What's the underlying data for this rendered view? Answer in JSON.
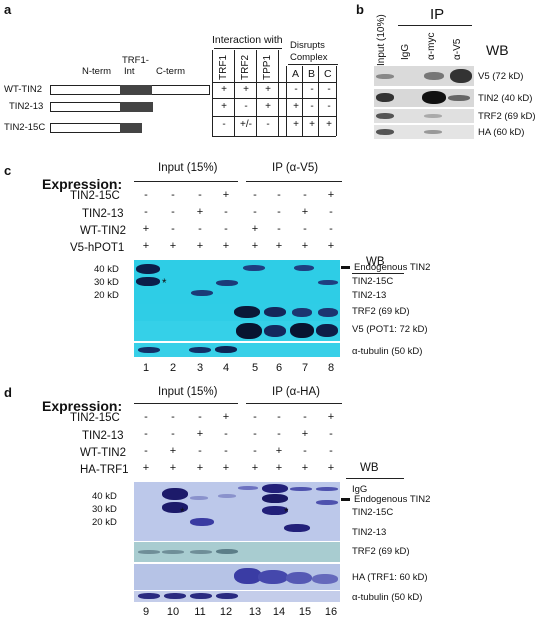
{
  "panel_a": {
    "label": "a",
    "domain_labels": {
      "nterm": "N-term",
      "trf1_int_line1": "TRF1-",
      "trf1_int_line2": "Int",
      "cterm": "C-term"
    },
    "constructs": [
      "WT-TIN2",
      "TIN2-13",
      "TIN2-15C"
    ],
    "interaction_header": "Interaction with",
    "interaction_cols": [
      "TRF1",
      "TRF2",
      "TPP1"
    ],
    "disrupts_header_line1": "Disrupts",
    "disrupts_header_line2": "Complex",
    "disrupts_cols": [
      "A",
      "B",
      "C"
    ],
    "rows": [
      [
        "+",
        "+",
        "+",
        "-",
        "-",
        "-"
      ],
      [
        "+",
        "-",
        "+",
        "+",
        "-",
        "-"
      ],
      [
        "-",
        "+/-",
        "-",
        "+",
        "+",
        "+"
      ]
    ]
  },
  "panel_b": {
    "label": "b",
    "input_label": "Input (10%)",
    "ip_label": "IP",
    "lanes": [
      "IgG",
      "α-myc",
      "α-V5"
    ],
    "wb_label": "WB",
    "blots": [
      "V5 (72 kD)",
      "TIN2 (40 kD)",
      "TRF2 (69 kD)",
      "HA (60 kD)"
    ]
  },
  "panel_c": {
    "label": "c",
    "expression_label": "Expression:",
    "input_label": "Input (15%)",
    "ip_label": "IP (α-V5)",
    "row_labels": [
      "TIN2-15C",
      "TIN2-13",
      "WT-TIN2",
      "V5-hPOT1"
    ],
    "rows": [
      [
        "-",
        "-",
        "-",
        "+",
        "-",
        "-",
        "-",
        "+"
      ],
      [
        "-",
        "-",
        "+",
        "-",
        "-",
        "-",
        "+",
        "-"
      ],
      [
        "+",
        "-",
        "-",
        "-",
        "+",
        "-",
        "-",
        "-"
      ],
      [
        "+",
        "+",
        "+",
        "+",
        "+",
        "+",
        "+",
        "+"
      ]
    ],
    "wb_label": "WB",
    "mw_markers": [
      "40 kD",
      "30 kD",
      "20 kD"
    ],
    "right_labels": [
      "Endogenous TIN2",
      "TIN2-15C",
      "TIN2-13",
      "TRF2 (69 kD)",
      "V5 (POT1: 72 kD)",
      "α-tubulin (50 kD)"
    ],
    "asterisk": "*",
    "lane_numbers": [
      "1",
      "2",
      "3",
      "4",
      "5",
      "6",
      "7",
      "8"
    ]
  },
  "panel_d": {
    "label": "d",
    "expression_label": "Expression:",
    "input_label": "Input (15%)",
    "ip_label": "IP (α-HA)",
    "row_labels": [
      "TIN2-15C",
      "TIN2-13",
      "WT-TIN2",
      "HA-TRF1"
    ],
    "rows": [
      [
        "-",
        "-",
        "-",
        "+",
        "-",
        "-",
        "-",
        "+"
      ],
      [
        "-",
        "-",
        "+",
        "-",
        "-",
        "-",
        "+",
        "-"
      ],
      [
        "-",
        "+",
        "-",
        "-",
        "-",
        "+",
        "-",
        "-"
      ],
      [
        "+",
        "+",
        "+",
        "+",
        "+",
        "+",
        "+",
        "+"
      ]
    ],
    "wb_label": "WB",
    "mw_markers": [
      "40 kD",
      "30 kD",
      "20 kD"
    ],
    "right_labels": [
      "IgG",
      "Endogenous TIN2",
      "TIN2-15C",
      "TIN2-13",
      "TRF2 (69 kD)",
      "HA (TRF1: 60 kD)",
      "α-tubulin (50 kD)"
    ],
    "asterisk": "*",
    "lane_numbers": [
      "9",
      "10",
      "11",
      "12",
      "13",
      "14",
      "15",
      "16"
    ]
  }
}
